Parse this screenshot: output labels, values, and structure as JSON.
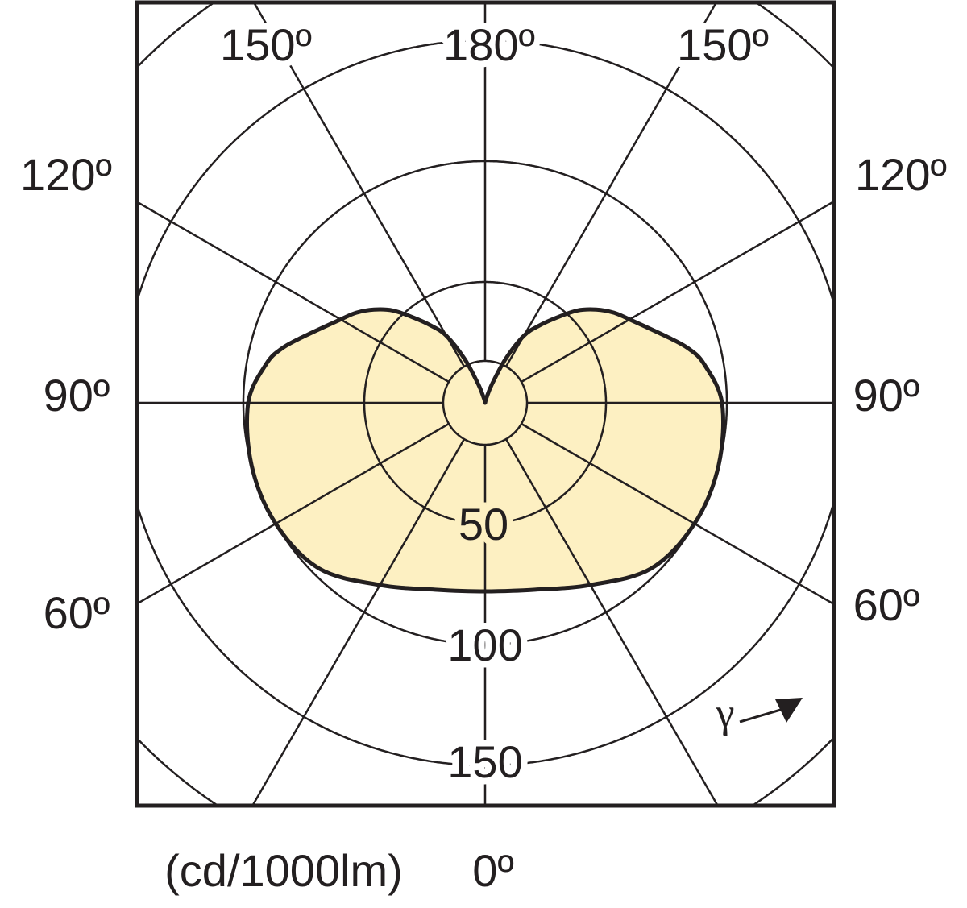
{
  "chart_data": {
    "type": "polar",
    "title": "",
    "unit_label": "(cd/1000lm)",
    "angle_symbol": "γ",
    "angle_labels": {
      "top": [
        "150º",
        "180º",
        "150º"
      ],
      "left": [
        "120º",
        "90º",
        "60º"
      ],
      "right": [
        "120º",
        "90º",
        "60º"
      ],
      "bottom": "0º"
    },
    "radial_ticks": [
      50,
      100,
      150
    ],
    "radial_rings": [
      50,
      100,
      150,
      200
    ],
    "radial_labels": [
      "50",
      "100",
      "150"
    ],
    "angle_spokes_deg": [
      0,
      30,
      60,
      90,
      120,
      150,
      180
    ],
    "symmetric": true,
    "series": [
      {
        "angles_deg": [
          0,
          15,
          30,
          45,
          60,
          75,
          90,
          100,
          105,
          110,
          120,
          125,
          130,
          135,
          140,
          145,
          150,
          155,
          160,
          165,
          180
        ],
        "values": [
          78,
          80,
          87,
          97,
          100,
          100,
          98,
          92,
          87,
          80,
          69,
          65,
          60,
          54,
          46,
          39,
          32,
          20,
          8,
          2,
          0
        ],
        "fill": "#fdf0c2",
        "stroke": "#231f20"
      }
    ],
    "colors": {
      "grid": "#231f20",
      "frame": "#231f20",
      "fill": "#fdf0c2"
    }
  }
}
